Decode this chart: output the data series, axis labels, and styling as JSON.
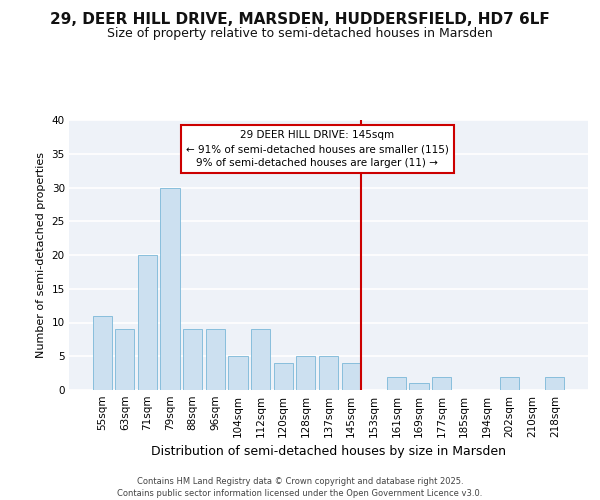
{
  "title_line1": "29, DEER HILL DRIVE, MARSDEN, HUDDERSFIELD, HD7 6LF",
  "title_line2": "Size of property relative to semi-detached houses in Marsden",
  "xlabel": "Distribution of semi-detached houses by size in Marsden",
  "ylabel": "Number of semi-detached properties",
  "categories": [
    "55sqm",
    "63sqm",
    "71sqm",
    "79sqm",
    "88sqm",
    "96sqm",
    "104sqm",
    "112sqm",
    "120sqm",
    "128sqm",
    "137sqm",
    "145sqm",
    "153sqm",
    "161sqm",
    "169sqm",
    "177sqm",
    "185sqm",
    "194sqm",
    "202sqm",
    "210sqm",
    "218sqm"
  ],
  "values": [
    11,
    9,
    20,
    30,
    9,
    9,
    5,
    9,
    4,
    5,
    5,
    4,
    0,
    2,
    1,
    2,
    0,
    0,
    2,
    0,
    2
  ],
  "highlight_index": 11,
  "bar_color": "#cce0f0",
  "bar_edgecolor": "#7ab8d8",
  "highlight_line_color": "#cc0000",
  "annotation_text": "29 DEER HILL DRIVE: 145sqm\n← 91% of semi-detached houses are smaller (115)\n9% of semi-detached houses are larger (11) →",
  "annotation_box_color": "#ffffff",
  "annotation_box_edgecolor": "#cc0000",
  "ylim": [
    0,
    40
  ],
  "yticks": [
    0,
    5,
    10,
    15,
    20,
    25,
    30,
    35,
    40
  ],
  "bg_color": "#eef2f8",
  "grid_color": "#ffffff",
  "footer": "Contains HM Land Registry data © Crown copyright and database right 2025.\nContains public sector information licensed under the Open Government Licence v3.0.",
  "title_fontsize": 11,
  "subtitle_fontsize": 9,
  "xlabel_fontsize": 9,
  "ylabel_fontsize": 8,
  "tick_fontsize": 7.5,
  "annotation_fontsize": 7.5,
  "footer_fontsize": 6
}
